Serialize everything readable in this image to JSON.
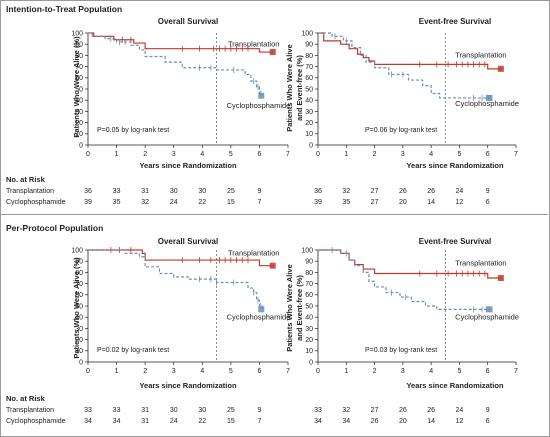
{
  "sections": [
    {
      "title": "Intention-to-Treat Population"
    },
    {
      "title": "Per-Protocol Population"
    }
  ],
  "risk_table": {
    "header": "No. at Risk",
    "itt": {
      "left": {
        "Transplantation": [
          36,
          33,
          31,
          30,
          30,
          25,
          9
        ],
        "Cyclophosphamide": [
          39,
          35,
          32,
          24,
          22,
          15,
          7
        ]
      },
      "right": {
        "Transplantation": [
          36,
          32,
          27,
          26,
          26,
          24,
          9
        ],
        "Cyclophosphamide": [
          39,
          35,
          27,
          20,
          14,
          12,
          6
        ]
      }
    },
    "pp": {
      "left": {
        "Transplantation": [
          33,
          33,
          31,
          30,
          30,
          25,
          9
        ],
        "Cyclophosphamide": [
          34,
          34,
          31,
          24,
          22,
          15,
          7
        ]
      },
      "right": {
        "Transplantation": [
          33,
          32,
          27,
          26,
          26,
          24,
          9
        ],
        "Cyclophosphamide": [
          34,
          34,
          26,
          20,
          14,
          12,
          6
        ]
      }
    }
  },
  "chart_data": [
    {
      "type": "line",
      "title": "Overall Survival",
      "xlabel": "Years since Randomization",
      "ylabel": "Patients Who Were Alive (%)",
      "xlim": [
        0,
        7
      ],
      "ylim": [
        0,
        100
      ],
      "xticks": [
        0,
        1,
        2,
        3,
        4,
        5,
        6,
        7
      ],
      "yticks": [
        0,
        10,
        20,
        30,
        40,
        50,
        60,
        70,
        80,
        90,
        100
      ],
      "pvalue": "P=0.05 by log-rank test",
      "vline": 4.5,
      "series": [
        {
          "name": "Transplantation",
          "color": "#c0392b",
          "dash": false,
          "steps": [
            [
              0,
              100
            ],
            [
              0.2,
              97
            ],
            [
              0.9,
              94
            ],
            [
              1.6,
              91
            ],
            [
              2.0,
              86
            ],
            [
              6.0,
              83
            ],
            [
              6.5,
              83
            ]
          ],
          "censors": [
            1.2,
            1.5,
            3.3,
            3.9,
            4.4,
            4.6,
            4.8,
            5.0,
            5.2,
            5.4,
            5.6
          ]
        },
        {
          "name": "Cyclophosphamide",
          "color": "#6a8fb5",
          "dash": true,
          "steps": [
            [
              0,
              100
            ],
            [
              0.15,
              97
            ],
            [
              0.6,
              95
            ],
            [
              1.0,
              92
            ],
            [
              1.5,
              89
            ],
            [
              1.8,
              85
            ],
            [
              2.0,
              79
            ],
            [
              2.7,
              74
            ],
            [
              3.3,
              69
            ],
            [
              4.5,
              67
            ],
            [
              5.5,
              63
            ],
            [
              5.7,
              57
            ],
            [
              5.9,
              52
            ],
            [
              6.0,
              46
            ],
            [
              6.1,
              44
            ]
          ],
          "censors": [
            0.8,
            1.1,
            1.3,
            3.9,
            4.3,
            5.1,
            5.8,
            5.95,
            6.05
          ]
        }
      ],
      "annotations": [
        {
          "text": "Transplantation",
          "x": 4.9,
          "y": 88
        },
        {
          "text": "Cyclophosphamide",
          "x": 4.85,
          "y": 33
        }
      ]
    },
    {
      "type": "line",
      "title": "Event-free Survival",
      "xlabel": "Years since Randomization",
      "ylabel": "Patients Who Were Alive and Event-free (%)",
      "xlim": [
        0,
        7
      ],
      "ylim": [
        0,
        100
      ],
      "xticks": [
        0,
        1,
        2,
        3,
        4,
        5,
        6,
        7
      ],
      "yticks": [
        0,
        10,
        20,
        30,
        40,
        50,
        60,
        70,
        80,
        90,
        100
      ],
      "pvalue": "P=0.06 by log-rank test",
      "vline": 4.5,
      "series": [
        {
          "name": "Transplantation",
          "color": "#c0392b",
          "dash": false,
          "steps": [
            [
              0,
              100
            ],
            [
              0.2,
              93
            ],
            [
              0.8,
              90
            ],
            [
              1.1,
              86
            ],
            [
              1.4,
              81
            ],
            [
              1.6,
              78
            ],
            [
              1.8,
              75
            ],
            [
              2.0,
              72
            ],
            [
              6.0,
              68
            ],
            [
              6.5,
              68
            ]
          ],
          "censors": [
            3.6,
            4.2,
            4.6,
            4.9,
            5.1,
            5.3,
            5.5,
            5.7,
            5.9
          ]
        },
        {
          "name": "Cyclophosphamide",
          "color": "#6a8fb5",
          "dash": true,
          "steps": [
            [
              0,
              100
            ],
            [
              0.5,
              97
            ],
            [
              0.9,
              93
            ],
            [
              1.2,
              87
            ],
            [
              1.5,
              80
            ],
            [
              1.7,
              74
            ],
            [
              2.0,
              69
            ],
            [
              2.5,
              63
            ],
            [
              3.2,
              58
            ],
            [
              3.7,
              53
            ],
            [
              4.0,
              46
            ],
            [
              4.3,
              42
            ],
            [
              6.1,
              42
            ]
          ],
          "censors": [
            0.6,
            1.0,
            2.6,
            3.0,
            5.5,
            5.8,
            5.95,
            6.05
          ]
        }
      ],
      "annotations": [
        {
          "text": "Transplantation",
          "x": 4.85,
          "y": 78
        },
        {
          "text": "Cyclophosphamide",
          "x": 4.85,
          "y": 35
        }
      ]
    },
    {
      "type": "line",
      "title": "Overall Survival",
      "xlabel": "Years since Randomization",
      "ylabel": "Patients Who Were Alive (%)",
      "xlim": [
        0,
        7
      ],
      "ylim": [
        0,
        100
      ],
      "xticks": [
        0,
        1,
        2,
        3,
        4,
        5,
        6,
        7
      ],
      "yticks": [
        0,
        10,
        20,
        30,
        40,
        50,
        60,
        70,
        80,
        90,
        100
      ],
      "pvalue": "P=0.02 by log-rank test",
      "vline": 4.5,
      "series": [
        {
          "name": "Transplantation",
          "color": "#c0392b",
          "dash": false,
          "steps": [
            [
              0,
              100
            ],
            [
              1.9,
              97
            ],
            [
              2.0,
              91
            ],
            [
              4.4,
              91
            ],
            [
              6.0,
              86
            ],
            [
              6.5,
              86
            ]
          ],
          "censors": [
            0.8,
            1.1,
            1.5,
            3.3,
            3.9,
            4.3,
            4.6,
            4.8,
            5.0,
            5.2,
            5.4,
            5.6
          ]
        },
        {
          "name": "Cyclophosphamide",
          "color": "#6a8fb5",
          "dash": true,
          "steps": [
            [
              0,
              100
            ],
            [
              1.3,
              97
            ],
            [
              1.8,
              94
            ],
            [
              2.0,
              85
            ],
            [
              2.5,
              79
            ],
            [
              3.0,
              76
            ],
            [
              3.5,
              74
            ],
            [
              4.5,
              71
            ],
            [
              5.6,
              66
            ],
            [
              5.8,
              62
            ],
            [
              5.9,
              55
            ],
            [
              6.0,
              50
            ],
            [
              6.1,
              47
            ]
          ],
          "censors": [
            3.9,
            4.3,
            4.5,
            5.1,
            5.8,
            5.95,
            6.05
          ]
        }
      ],
      "annotations": [
        {
          "text": "Transplantation",
          "x": 4.9,
          "y": 95
        },
        {
          "text": "Cyclophosphamide",
          "x": 4.85,
          "y": 38
        }
      ]
    },
    {
      "type": "line",
      "title": "Event-free Survival",
      "xlabel": "Years since Randomization",
      "ylabel": "Patients Who Were Alive and Event-free (%)",
      "xlim": [
        0,
        7
      ],
      "ylim": [
        0,
        100
      ],
      "xticks": [
        0,
        1,
        2,
        3,
        4,
        5,
        6,
        7
      ],
      "yticks": [
        0,
        10,
        20,
        30,
        40,
        50,
        60,
        70,
        80,
        90,
        100
      ],
      "pvalue": "P=0.03 by log-rank test",
      "vline": 4.5,
      "series": [
        {
          "name": "Transplantation",
          "color": "#c0392b",
          "dash": false,
          "steps": [
            [
              0,
              100
            ],
            [
              0.8,
              97
            ],
            [
              1.1,
              91
            ],
            [
              1.3,
              87
            ],
            [
              1.6,
              83
            ],
            [
              2.0,
              79
            ],
            [
              6.0,
              75
            ],
            [
              6.5,
              75
            ]
          ],
          "censors": [
            3.6,
            4.2,
            4.6,
            4.9,
            5.1,
            5.3,
            5.5,
            5.7,
            5.9
          ]
        },
        {
          "name": "Cyclophosphamide",
          "color": "#6a8fb5",
          "dash": true,
          "steps": [
            [
              0,
              100
            ],
            [
              0.8,
              97
            ],
            [
              1.1,
              91
            ],
            [
              1.3,
              86
            ],
            [
              1.6,
              80
            ],
            [
              1.8,
              72
            ],
            [
              2.0,
              67
            ],
            [
              2.4,
              62
            ],
            [
              2.9,
              58
            ],
            [
              3.3,
              54
            ],
            [
              3.8,
              50
            ],
            [
              4.2,
              47
            ],
            [
              6.1,
              47
            ]
          ],
          "censors": [
            0.5,
            1.0,
            2.6,
            3.1,
            5.5,
            5.8,
            5.95,
            6.05
          ]
        }
      ],
      "annotations": [
        {
          "text": "Transplantation",
          "x": 4.85,
          "y": 86
        },
        {
          "text": "Cyclophosphamide",
          "x": 4.85,
          "y": 38
        }
      ]
    }
  ]
}
